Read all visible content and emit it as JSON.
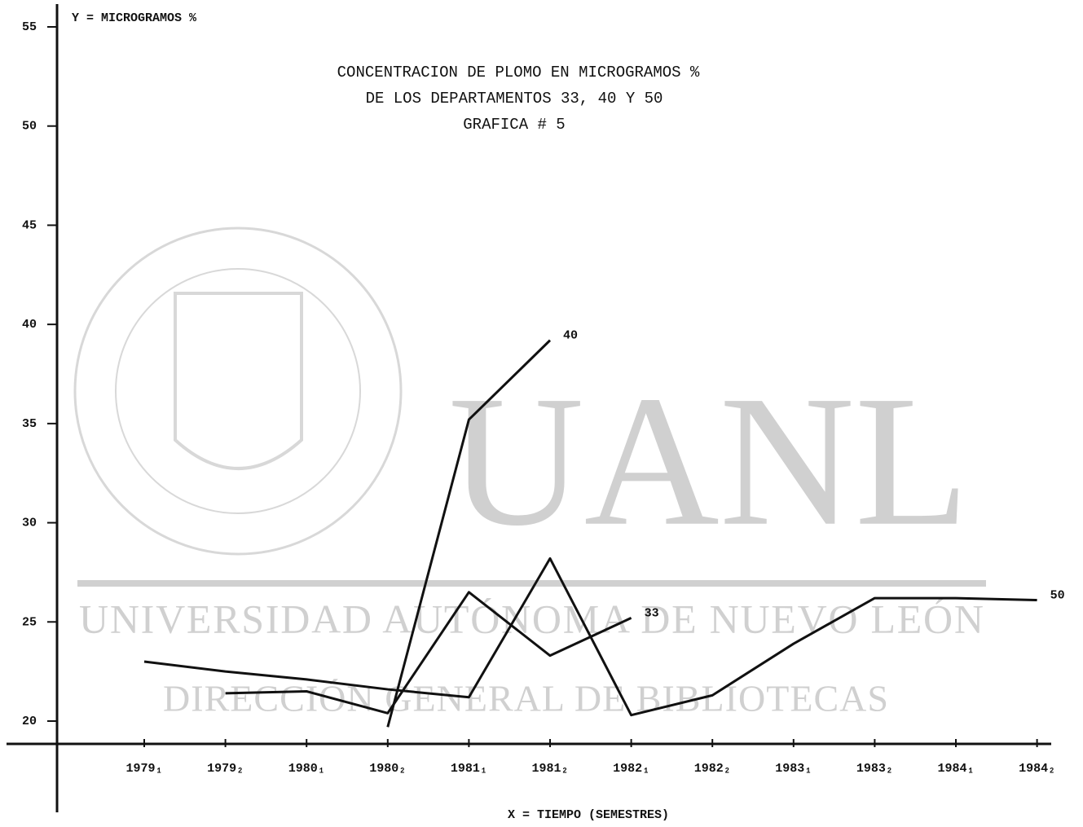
{
  "chart_data": {
    "type": "line",
    "title": [
      "CONCENTRACION DE PLOMO EN MICROGRAMOS %",
      "DE LOS DEPARTAMENTOS 33, 40 Y 50",
      "GRAFICA # 5"
    ],
    "y_label": "Y = MICROGRAMOS %",
    "x_label": "X = TIEMPO (SEMESTRES)",
    "categories": [
      "1979₁",
      "1979₂",
      "1980₁",
      "1980₂",
      "1981₁",
      "1981₂",
      "1982₁",
      "1982₂",
      "1983₁",
      "1983₂",
      "1984₁",
      "1984₂"
    ],
    "series": [
      {
        "name": "40",
        "color": "#111111",
        "values": [
          null,
          null,
          null,
          19.7,
          35.2,
          39.2,
          null,
          null,
          null,
          null,
          null,
          null
        ]
      },
      {
        "name": "33",
        "color": "#111111",
        "values": [
          null,
          21.4,
          21.5,
          20.4,
          26.5,
          23.3,
          25.2,
          null,
          null,
          null,
          null,
          null
        ]
      },
      {
        "name": "50",
        "color": "#111111",
        "values": [
          23.0,
          22.5,
          22.1,
          21.6,
          21.2,
          28.2,
          20.3,
          21.3,
          23.9,
          26.2,
          26.2,
          26.1
        ]
      }
    ],
    "ylim": [
      18.85,
      56.15
    ],
    "yticks": [
      20,
      25,
      30,
      35,
      40,
      45,
      50,
      55
    ],
    "grid": false
  },
  "watermark": [
    "UANL",
    "UNIVERSIDAD AUTÓNOMA DE NUEVO LEÓN",
    "DIRECCIÓN GENERAL DE BIBLIOTECAS"
  ]
}
